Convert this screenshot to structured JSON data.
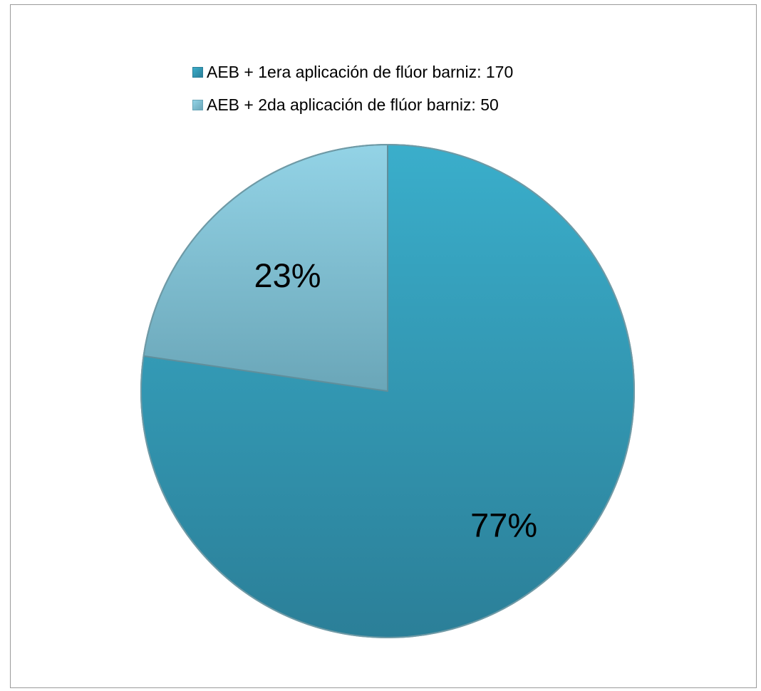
{
  "chart_data": {
    "type": "pie",
    "title": "",
    "legend_position": "top",
    "slices": [
      {
        "label": "AEB + 1era aplicación de flúor barniz: 170",
        "value": 170,
        "percent_label": "77%",
        "color_light": "#3aaecb",
        "color_dark": "#2b7f98"
      },
      {
        "label": "AEB + 2da aplicación de flúor barniz: 50",
        "value": 50,
        "percent_label": "23%",
        "color_light": "#93d3e6",
        "color_dark": "#6aa6b8"
      }
    ]
  }
}
